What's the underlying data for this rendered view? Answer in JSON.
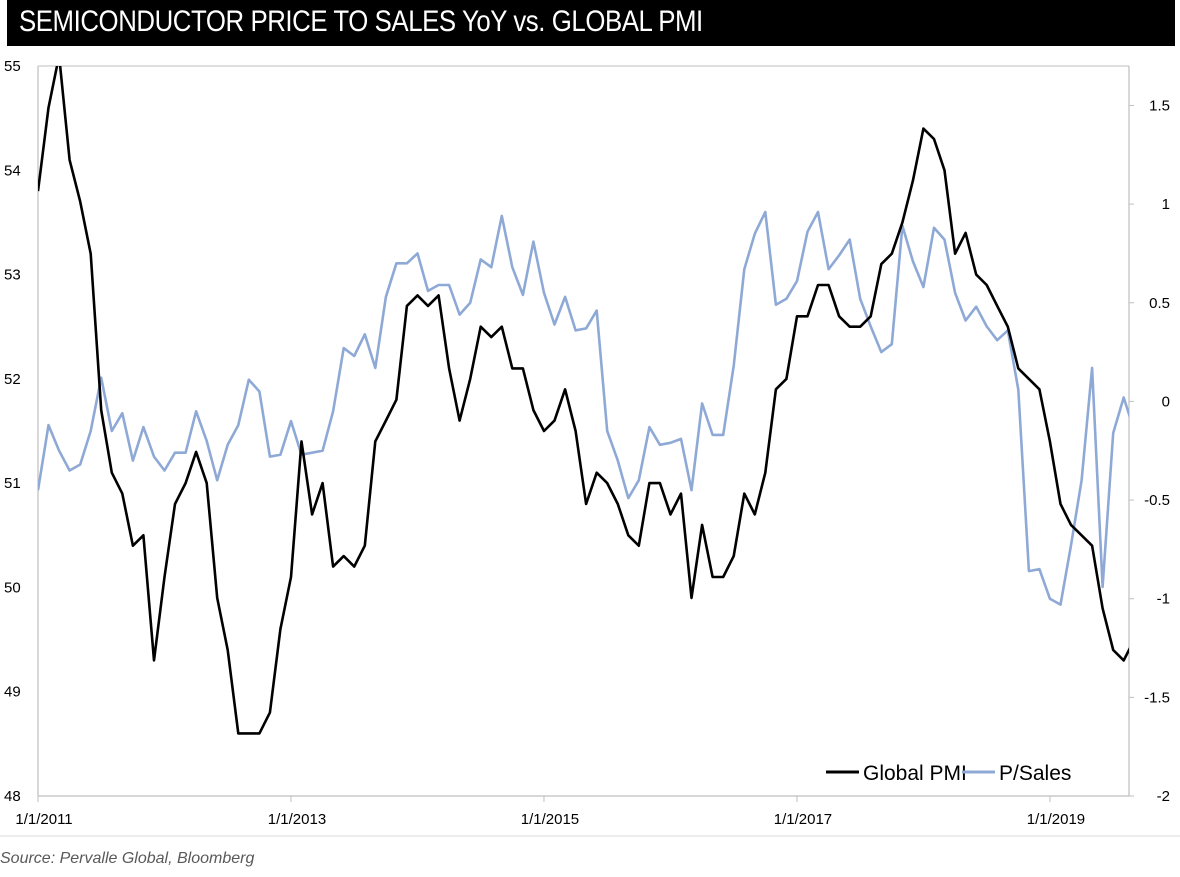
{
  "title": "SEMICONDUCTOR PRICE TO SALES YoY vs. GLOBAL PMI",
  "source": "Source: Pervalle Global, Bloomberg",
  "colors": {
    "pmi": "#000000",
    "psales": "#8fa9d6",
    "axis": "#bfbfbf"
  },
  "chart_data": {
    "type": "line",
    "title": "SEMICONDUCTOR PRICE TO SALES YoY vs. GLOBAL PMI",
    "x_start": "1/1/2011",
    "x_step": "1 month",
    "x_range_months": [
      0,
      103.5
    ],
    "x_tick_months": [
      0,
      24,
      48,
      72,
      96
    ],
    "x_tick_labels": [
      "1/1/2011",
      "1/1/2013",
      "1/1/2015",
      "1/1/2017",
      "1/1/2019"
    ],
    "left_axis": {
      "series": "Global PMI",
      "range": [
        48,
        55
      ],
      "ticks": [
        "48",
        "49",
        "50",
        "51",
        "52",
        "53",
        "54",
        "55"
      ]
    },
    "right_axis": {
      "series": "P/Sales",
      "range": [
        -2,
        1.7
      ],
      "ticks": [
        "-2",
        "-1.5",
        "-1",
        "-0.5",
        "0",
        "0.5",
        "1",
        "1.5"
      ]
    },
    "legend": {
      "position": "bottom-right",
      "entries": [
        "Global PMI",
        "P/Sales"
      ]
    },
    "series": [
      {
        "name": "Global PMI",
        "axis": "left",
        "color": "#000000",
        "values": [
          53.8,
          54.6,
          55.1,
          54.1,
          53.7,
          53.2,
          51.7,
          51.1,
          50.9,
          50.4,
          50.5,
          49.3,
          50.1,
          50.8,
          51.0,
          51.3,
          51.0,
          49.9,
          49.4,
          48.6,
          48.6,
          48.6,
          48.8,
          49.6,
          50.1,
          51.4,
          50.7,
          51.0,
          50.2,
          50.3,
          50.2,
          50.4,
          51.4,
          51.6,
          51.8,
          52.7,
          52.8,
          52.7,
          52.8,
          52.1,
          51.6,
          52.0,
          52.5,
          52.4,
          52.5,
          52.1,
          52.1,
          51.7,
          51.5,
          51.6,
          51.9,
          51.5,
          50.8,
          51.1,
          51.0,
          50.8,
          50.5,
          50.4,
          51.0,
          51.0,
          50.7,
          50.9,
          49.9,
          50.6,
          50.1,
          50.1,
          50.3,
          50.9,
          50.7,
          51.1,
          51.9,
          52.0,
          52.6,
          52.6,
          52.9,
          52.9,
          52.6,
          52.5,
          52.5,
          52.6,
          53.1,
          53.2,
          53.5,
          53.9,
          54.4,
          54.3,
          54.0,
          53.2,
          53.4,
          53.0,
          52.9,
          52.7,
          52.5,
          52.1,
          52.0,
          51.9,
          51.4,
          50.8,
          50.6,
          50.5,
          50.4,
          49.8,
          49.4,
          49.3,
          49.5
        ]
      },
      {
        "name": "P/Sales",
        "axis": "right",
        "color": "#8fa9d6",
        "values": [
          -0.45,
          -0.12,
          -0.25,
          -0.35,
          -0.32,
          -0.15,
          0.12,
          -0.15,
          -0.06,
          -0.3,
          -0.13,
          -0.28,
          -0.35,
          -0.26,
          -0.26,
          -0.05,
          -0.2,
          -0.4,
          -0.22,
          -0.12,
          0.11,
          0.05,
          -0.28,
          -0.27,
          -0.1,
          -0.27,
          -0.26,
          -0.25,
          -0.05,
          0.27,
          0.23,
          0.34,
          0.17,
          0.53,
          0.7,
          0.7,
          0.75,
          0.56,
          0.59,
          0.59,
          0.44,
          0.5,
          0.72,
          0.68,
          0.94,
          0.68,
          0.54,
          0.81,
          0.55,
          0.39,
          0.53,
          0.36,
          0.37,
          0.46,
          -0.15,
          -0.3,
          -0.49,
          -0.4,
          -0.13,
          -0.22,
          -0.21,
          -0.19,
          -0.45,
          -0.01,
          -0.17,
          -0.17,
          0.18,
          0.67,
          0.85,
          0.96,
          0.49,
          0.52,
          0.61,
          0.86,
          0.96,
          0.67,
          0.74,
          0.82,
          0.52,
          0.38,
          0.25,
          0.29,
          0.89,
          0.71,
          0.58,
          0.88,
          0.82,
          0.55,
          0.41,
          0.48,
          0.38,
          0.31,
          0.36,
          0.06,
          -0.86,
          -0.85,
          -1.0,
          -1.03,
          -0.73,
          -0.4,
          0.17,
          -0.94,
          -0.16,
          0.02,
          -0.15
        ]
      }
    ]
  }
}
